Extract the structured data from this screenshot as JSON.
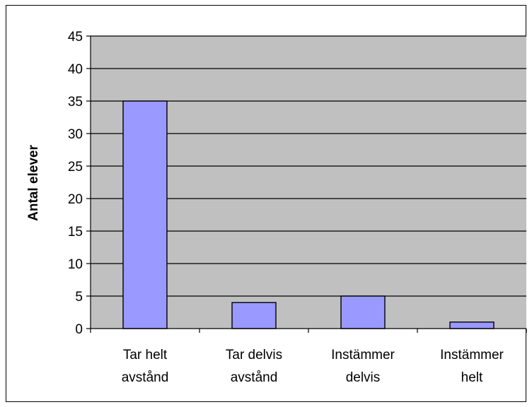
{
  "chart_data": {
    "type": "bar",
    "title": "",
    "xlabel": "",
    "ylabel": "Antal elever",
    "categories": [
      [
        "Tar helt",
        "avstånd"
      ],
      [
        "Tar delvis",
        "avstånd"
      ],
      [
        "Instämmer",
        "delvis"
      ],
      [
        "Instämmer",
        "helt"
      ]
    ],
    "values": [
      35,
      4,
      5,
      1
    ],
    "ylim": [
      0,
      45
    ],
    "yticks": [
      0,
      5,
      10,
      15,
      20,
      25,
      30,
      35,
      40,
      45
    ],
    "grid": true,
    "legend": "none",
    "colors": {
      "plot_area": "#C0C0C0",
      "bar_fill": "#9999FF",
      "bar_stroke": "#000000",
      "gridline": "#000000"
    }
  }
}
